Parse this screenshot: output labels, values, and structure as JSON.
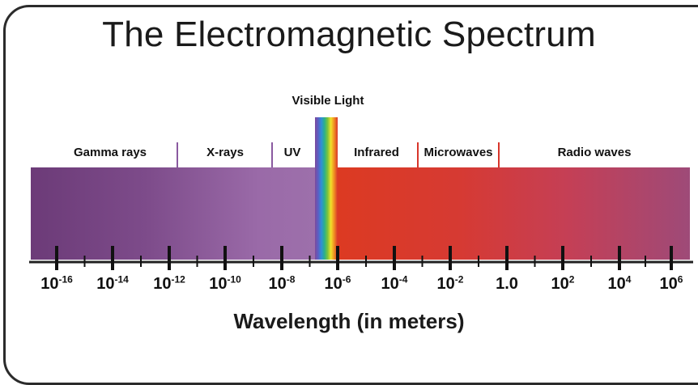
{
  "title": "The Electromagnetic Spectrum",
  "visible_label": "Visible Light",
  "bands": [
    {
      "name": "Gamma rays"
    },
    {
      "name": "X-rays"
    },
    {
      "name": "UV"
    },
    {
      "name": "Infrared"
    },
    {
      "name": "Microwaves"
    },
    {
      "name": "Radio waves"
    }
  ],
  "tick_labels": [
    {
      "base": "10",
      "exp": "-16"
    },
    {
      "base": "10",
      "exp": "-14"
    },
    {
      "base": "10",
      "exp": "-12"
    },
    {
      "base": "10",
      "exp": "-10"
    },
    {
      "base": "10",
      "exp": "-8"
    },
    {
      "base": "10",
      "exp": "-6"
    },
    {
      "base": "10",
      "exp": "-4"
    },
    {
      "base": "10",
      "exp": "-2"
    },
    {
      "base": "1.0",
      "exp": ""
    },
    {
      "base": "10",
      "exp": "2"
    },
    {
      "base": "10",
      "exp": "4"
    },
    {
      "base": "10",
      "exp": "6"
    }
  ],
  "axis_title": "Wavelength (in meters)",
  "colors": {
    "frame": "#2b2b2b",
    "left_divider": "#8a5aa0",
    "right_divider": "#d8352a"
  }
}
